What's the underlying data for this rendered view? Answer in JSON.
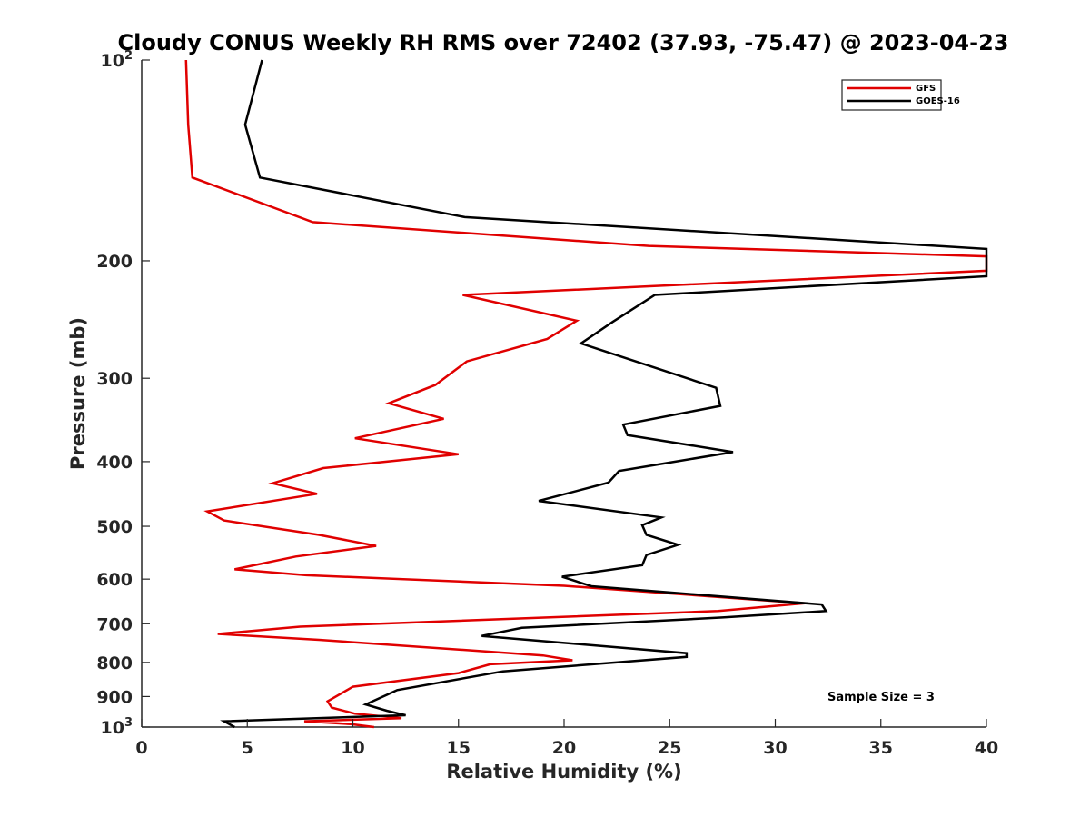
{
  "chart_data": {
    "type": "line",
    "title": "Cloudy CONUS Weekly RH RMS over 72402 (37.93, -75.47) @ 2023-04-23",
    "xlabel": "Relative Humidity (%)",
    "ylabel": "Pressure (mb)",
    "xlim": [
      0,
      40
    ],
    "ylim": [
      100,
      1000
    ],
    "y_scale": "log",
    "y_reversed": true,
    "grid": false,
    "legend_position": "top-right",
    "x_ticks": [
      "0",
      "5",
      "10",
      "15",
      "20",
      "25",
      "30",
      "35",
      "40"
    ],
    "y_ticks": [
      {
        "value": 100,
        "base": "10",
        "exp": "2"
      },
      {
        "value": 200,
        "label": "200"
      },
      {
        "value": 300,
        "label": "300"
      },
      {
        "value": 400,
        "label": "400"
      },
      {
        "value": 500,
        "label": "500"
      },
      {
        "value": 600,
        "label": "600"
      },
      {
        "value": 700,
        "label": "700"
      },
      {
        "value": 800,
        "label": "800"
      },
      {
        "value": 900,
        "label": "900"
      },
      {
        "value": 1000,
        "base": "10",
        "exp": "3"
      }
    ],
    "annotation": "Sample Size = 3",
    "series": [
      {
        "name": "GFS",
        "color": "#e00000",
        "points": [
          {
            "rh": 2.1,
            "p": 100
          },
          {
            "rh": 2.2,
            "p": 125
          },
          {
            "rh": 2.4,
            "p": 150
          },
          {
            "rh": 8.1,
            "p": 175
          },
          {
            "rh": 24.0,
            "p": 190
          },
          {
            "rh": 40.0,
            "p": 197
          },
          {
            "rh": 40.0,
            "p": 207
          },
          {
            "rh": 15.2,
            "p": 225
          },
          {
            "rh": 20.6,
            "p": 246
          },
          {
            "rh": 19.2,
            "p": 262
          },
          {
            "rh": 15.4,
            "p": 283
          },
          {
            "rh": 13.9,
            "p": 307
          },
          {
            "rh": 11.7,
            "p": 327
          },
          {
            "rh": 14.3,
            "p": 345
          },
          {
            "rh": 10.1,
            "p": 369
          },
          {
            "rh": 15.0,
            "p": 390
          },
          {
            "rh": 8.6,
            "p": 409
          },
          {
            "rh": 6.2,
            "p": 431
          },
          {
            "rh": 8.3,
            "p": 447
          },
          {
            "rh": 3.1,
            "p": 475
          },
          {
            "rh": 3.9,
            "p": 490
          },
          {
            "rh": 8.4,
            "p": 515
          },
          {
            "rh": 11.1,
            "p": 535
          },
          {
            "rh": 7.3,
            "p": 555
          },
          {
            "rh": 4.4,
            "p": 580
          },
          {
            "rh": 7.8,
            "p": 592
          },
          {
            "rh": 20.0,
            "p": 614
          },
          {
            "rh": 31.4,
            "p": 652
          },
          {
            "rh": 27.3,
            "p": 670
          },
          {
            "rh": 7.5,
            "p": 707
          },
          {
            "rh": 3.6,
            "p": 725
          },
          {
            "rh": 8.4,
            "p": 740
          },
          {
            "rh": 19.0,
            "p": 781
          },
          {
            "rh": 20.4,
            "p": 794
          },
          {
            "rh": 16.5,
            "p": 805
          },
          {
            "rh": 15.0,
            "p": 830
          },
          {
            "rh": 10.0,
            "p": 870
          },
          {
            "rh": 8.8,
            "p": 915
          },
          {
            "rh": 9.0,
            "p": 935
          },
          {
            "rh": 10.1,
            "p": 955
          },
          {
            "rh": 12.3,
            "p": 970
          },
          {
            "rh": 7.7,
            "p": 980
          },
          {
            "rh": 9.9,
            "p": 990
          },
          {
            "rh": 11.0,
            "p": 1000
          }
        ]
      },
      {
        "name": "GOES-16",
        "color": "#000000",
        "points": [
          {
            "rh": 5.7,
            "p": 100
          },
          {
            "rh": 4.9,
            "p": 125
          },
          {
            "rh": 5.6,
            "p": 150
          },
          {
            "rh": 15.3,
            "p": 172
          },
          {
            "rh": 40.0,
            "p": 192
          },
          {
            "rh": 40.0,
            "p": 211
          },
          {
            "rh": 24.3,
            "p": 225
          },
          {
            "rh": 22.3,
            "p": 247
          },
          {
            "rh": 20.8,
            "p": 266
          },
          {
            "rh": 27.2,
            "p": 310
          },
          {
            "rh": 27.4,
            "p": 330
          },
          {
            "rh": 22.8,
            "p": 352
          },
          {
            "rh": 23.0,
            "p": 365
          },
          {
            "rh": 28.0,
            "p": 387
          },
          {
            "rh": 22.6,
            "p": 413
          },
          {
            "rh": 22.1,
            "p": 430
          },
          {
            "rh": 18.8,
            "p": 458
          },
          {
            "rh": 24.6,
            "p": 485
          },
          {
            "rh": 23.7,
            "p": 498
          },
          {
            "rh": 23.9,
            "p": 515
          },
          {
            "rh": 25.4,
            "p": 533
          },
          {
            "rh": 23.9,
            "p": 552
          },
          {
            "rh": 23.7,
            "p": 572
          },
          {
            "rh": 19.9,
            "p": 595
          },
          {
            "rh": 21.3,
            "p": 615
          },
          {
            "rh": 32.2,
            "p": 655
          },
          {
            "rh": 32.4,
            "p": 670
          },
          {
            "rh": 27.5,
            "p": 685
          },
          {
            "rh": 18.0,
            "p": 710
          },
          {
            "rh": 16.1,
            "p": 730
          },
          {
            "rh": 25.8,
            "p": 775
          },
          {
            "rh": 25.8,
            "p": 785
          },
          {
            "rh": 17.1,
            "p": 825
          },
          {
            "rh": 12.1,
            "p": 880
          },
          {
            "rh": 11.6,
            "p": 895
          },
          {
            "rh": 10.6,
            "p": 925
          },
          {
            "rh": 11.6,
            "p": 945
          },
          {
            "rh": 12.5,
            "p": 960
          },
          {
            "rh": 3.9,
            "p": 980
          },
          {
            "rh": 4.4,
            "p": 1000
          }
        ]
      }
    ]
  }
}
